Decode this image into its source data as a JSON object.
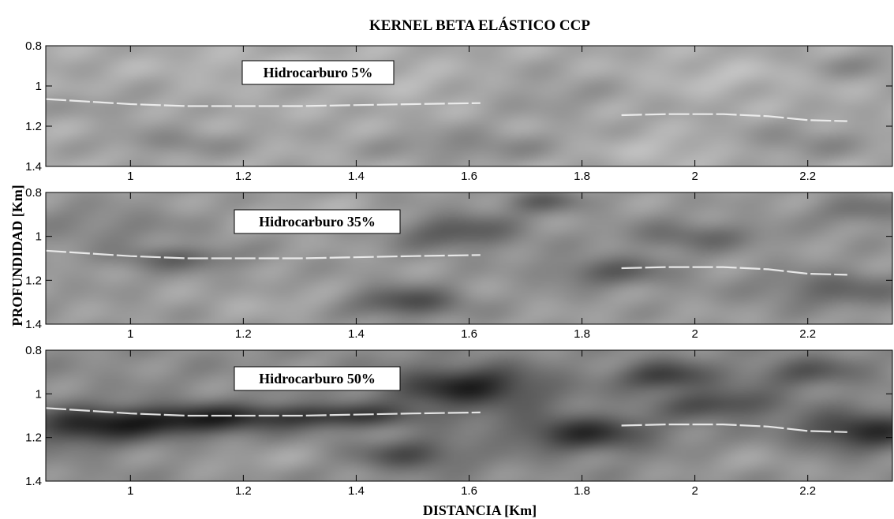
{
  "chart_data": {
    "type": "heatmap",
    "title": "KERNEL BETA ELÁSTICO CCP",
    "xlabel": "DISTANCIA [Km]",
    "ylabel": "PROFUNDIDAD [Km]",
    "colormap": "gray",
    "colors": {
      "background": "#ffffff",
      "axis": "#000000",
      "horizon": "#f2f2f2"
    },
    "xlim": [
      0.85,
      2.35
    ],
    "ylim": [
      0.8,
      1.4
    ],
    "y_reversed": true,
    "x_ticks": [
      1,
      1.2,
      1.4,
      1.6,
      1.8,
      2,
      2.2
    ],
    "x_tick_labels": [
      "1",
      "1.2",
      "1.4",
      "1.6",
      "1.8",
      "2",
      "2.2"
    ],
    "y_ticks": [
      0.8,
      1,
      1.2,
      1.4
    ],
    "y_tick_labels": [
      "0.8",
      "1",
      "1.2",
      "1.4"
    ],
    "horizons": [
      {
        "x": [
          0.85,
          1.0,
          1.1,
          1.3,
          1.5,
          1.62
        ],
        "y": [
          1.065,
          1.09,
          1.1,
          1.1,
          1.09,
          1.085
        ]
      },
      {
        "x": [
          1.87,
          1.95,
          2.05,
          2.13,
          2.2,
          2.27
        ],
        "y": [
          1.145,
          1.14,
          1.14,
          1.15,
          1.17,
          1.175
        ]
      }
    ],
    "panels": [
      {
        "annotation": "Hidrocarburo 5%",
        "base_gray": 0.66,
        "anomalies": [
          {
            "x": 1.08,
            "y": 1.28,
            "sx": 0.09,
            "sy": 0.05,
            "a": -0.12
          },
          {
            "x": 1.6,
            "y": 1.3,
            "sx": 0.12,
            "sy": 0.06,
            "a": -0.13
          },
          {
            "x": 1.25,
            "y": 0.9,
            "sx": 0.15,
            "sy": 0.05,
            "a": 0.06
          },
          {
            "x": 1.75,
            "y": 1.05,
            "sx": 0.09,
            "sy": 0.08,
            "a": -0.07
          },
          {
            "x": 2.2,
            "y": 1.28,
            "sx": 0.1,
            "sy": 0.06,
            "a": -0.11
          },
          {
            "x": 2.05,
            "y": 0.95,
            "sx": 0.1,
            "sy": 0.06,
            "a": 0.07
          },
          {
            "x": 0.95,
            "y": 1.1,
            "sx": 0.08,
            "sy": 0.05,
            "a": -0.06
          },
          {
            "x": 1.5,
            "y": 1.0,
            "sx": 0.07,
            "sy": 0.05,
            "a": 0.05
          },
          {
            "x": 1.95,
            "y": 1.32,
            "sx": 0.08,
            "sy": 0.05,
            "a": 0.08
          },
          {
            "x": 2.3,
            "y": 0.9,
            "sx": 0.07,
            "sy": 0.05,
            "a": -0.1
          }
        ]
      },
      {
        "annotation": "Hidrocarburo 35%",
        "base_gray": 0.6,
        "anomalies": [
          {
            "x": 1.08,
            "y": 1.1,
            "sx": 0.08,
            "sy": 0.04,
            "a": -0.2
          },
          {
            "x": 1.49,
            "y": 1.3,
            "sx": 0.07,
            "sy": 0.05,
            "a": -0.3
          },
          {
            "x": 1.58,
            "y": 0.98,
            "sx": 0.08,
            "sy": 0.06,
            "a": -0.25
          },
          {
            "x": 1.73,
            "y": 0.84,
            "sx": 0.05,
            "sy": 0.04,
            "a": -0.2
          },
          {
            "x": 1.85,
            "y": 1.16,
            "sx": 0.08,
            "sy": 0.05,
            "a": -0.22
          },
          {
            "x": 2.0,
            "y": 1.0,
            "sx": 0.09,
            "sy": 0.05,
            "a": -0.18
          },
          {
            "x": 2.25,
            "y": 1.24,
            "sx": 0.1,
            "sy": 0.06,
            "a": -0.2
          },
          {
            "x": 0.95,
            "y": 0.95,
            "sx": 0.1,
            "sy": 0.06,
            "a": -0.1
          },
          {
            "x": 1.25,
            "y": 1.3,
            "sx": 0.1,
            "sy": 0.05,
            "a": 0.06
          },
          {
            "x": 1.33,
            "y": 0.9,
            "sx": 0.1,
            "sy": 0.05,
            "a": 0.08
          },
          {
            "x": 2.3,
            "y": 0.88,
            "sx": 0.06,
            "sy": 0.05,
            "a": -0.15
          }
        ]
      },
      {
        "annotation": "Hidrocarburo 50%",
        "base_gray": 0.55,
        "anomalies": [
          {
            "x": 0.92,
            "y": 1.15,
            "sx": 0.08,
            "sy": 0.06,
            "a": -0.35
          },
          {
            "x": 1.1,
            "y": 1.12,
            "sx": 0.1,
            "sy": 0.05,
            "a": -0.38
          },
          {
            "x": 1.35,
            "y": 1.1,
            "sx": 0.12,
            "sy": 0.04,
            "a": -0.32
          },
          {
            "x": 1.6,
            "y": 0.97,
            "sx": 0.1,
            "sy": 0.07,
            "a": -0.4
          },
          {
            "x": 1.5,
            "y": 1.28,
            "sx": 0.07,
            "sy": 0.05,
            "a": -0.25
          },
          {
            "x": 1.8,
            "y": 1.18,
            "sx": 0.09,
            "sy": 0.06,
            "a": -0.35
          },
          {
            "x": 1.95,
            "y": 0.92,
            "sx": 0.06,
            "sy": 0.05,
            "a": -0.3
          },
          {
            "x": 2.05,
            "y": 1.05,
            "sx": 0.08,
            "sy": 0.05,
            "a": -0.25
          },
          {
            "x": 2.3,
            "y": 1.17,
            "sx": 0.08,
            "sy": 0.06,
            "a": -0.38
          },
          {
            "x": 2.2,
            "y": 0.9,
            "sx": 0.07,
            "sy": 0.05,
            "a": -0.2
          },
          {
            "x": 1.22,
            "y": 1.3,
            "sx": 0.1,
            "sy": 0.05,
            "a": 0.08
          },
          {
            "x": 2.1,
            "y": 1.32,
            "sx": 0.1,
            "sy": 0.05,
            "a": 0.06
          }
        ]
      }
    ]
  }
}
